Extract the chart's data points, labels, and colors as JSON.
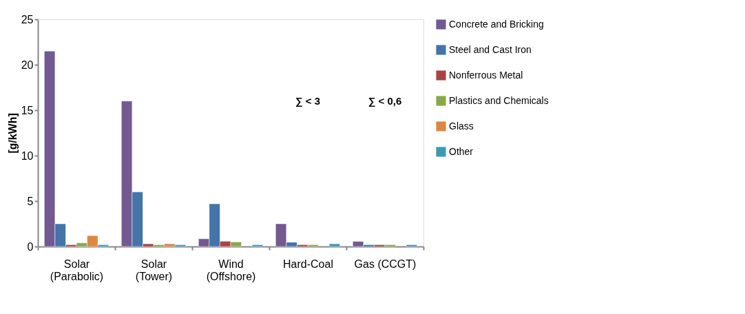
{
  "chart_data": {
    "type": "bar",
    "ylabel": "[g/kWh]",
    "categories": [
      "Solar\n(Parabolic)",
      "Solar\n(Tower)",
      "Wind\n(Offshore)",
      "Hard-Coal",
      "Gas (CCGT)"
    ],
    "series": [
      {
        "name": "Concrete and Bricking",
        "color": "#725a90",
        "values": [
          21.5,
          16,
          0.85,
          2.5,
          0.56
        ]
      },
      {
        "name": "Steel and Cast Iron",
        "color": "#4474a8",
        "values": [
          2.5,
          6.0,
          4.7,
          0.47,
          0.2
        ]
      },
      {
        "name": "Nonferrous Metal",
        "color": "#a94442",
        "values": [
          0.2,
          0.3,
          0.58,
          0.2,
          0.2
        ]
      },
      {
        "name": "Plastics and Chemicals",
        "color": "#8aa84a",
        "values": [
          0.4,
          0.2,
          0.5,
          0.2,
          0.2
        ]
      },
      {
        "name": "Glass",
        "color": "#dd8840",
        "values": [
          1.2,
          0.3,
          null,
          null,
          null
        ]
      },
      {
        "name": "Other",
        "color": "#3d9ab0",
        "values": [
          0.2,
          0.2,
          0.2,
          0.3,
          0.2
        ]
      }
    ],
    "ylim": [
      0,
      25
    ],
    "yticks": [
      0,
      5,
      10,
      15,
      20,
      25
    ],
    "grid": false,
    "legend": "right",
    "annotations": [
      "∑ < 3",
      "∑ < 0,6"
    ]
  }
}
